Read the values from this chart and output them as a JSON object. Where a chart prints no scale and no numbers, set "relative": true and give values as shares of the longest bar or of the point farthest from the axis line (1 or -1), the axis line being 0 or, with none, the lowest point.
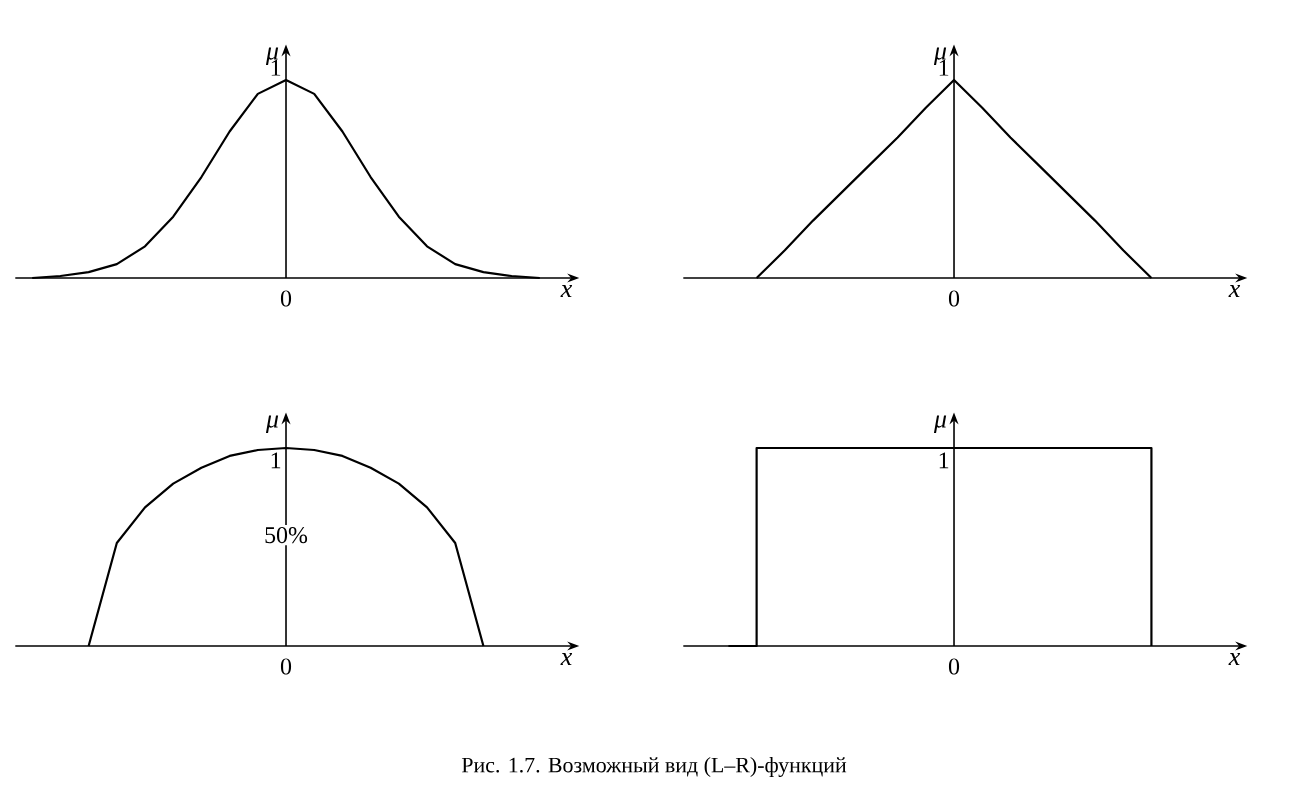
{
  "chart_data": [
    {
      "type": "line",
      "relative": true,
      "xlabel": "x",
      "ylabel": "μ",
      "categories": [
        null,
        null,
        null,
        null,
        null,
        null,
        null,
        null,
        null,
        null,
        null,
        null,
        null,
        null,
        null,
        null,
        null,
        null,
        null
      ],
      "series": [
        {
          "color": "#000000",
          "values": [
            0,
            0.01,
            0.03,
            0.07,
            0.16,
            0.31,
            0.51,
            0.74,
            0.93,
            1,
            0.93,
            0.74,
            0.51,
            0.31,
            0.16,
            0.07,
            0.03,
            0.01,
            0
          ]
        }
      ],
      "annotations": [
        "0",
        {
          "text": "1",
          "y": 1
        }
      ]
    },
    {
      "type": "line",
      "relative": true,
      "xlabel": "x",
      "ylabel": "μ",
      "categories": [
        null,
        null,
        null,
        null,
        null,
        null,
        null,
        null,
        null,
        null,
        null,
        null,
        null,
        null,
        null,
        null,
        null,
        null,
        null
      ],
      "series": [
        {
          "color": "#000000",
          "values": [
            null,
            null,
            0,
            0.14,
            0.29,
            0.43,
            0.57,
            0.71,
            0.86,
            1,
            0.86,
            0.71,
            0.57,
            0.43,
            0.29,
            0.14,
            0,
            null,
            null
          ]
        }
      ],
      "annotations": [
        "0",
        {
          "text": "1",
          "y": 1
        }
      ]
    },
    {
      "type": "line",
      "relative": true,
      "xlabel": "x",
      "ylabel": "μ",
      "categories": [
        null,
        null,
        null,
        null,
        null,
        null,
        null,
        null,
        null,
        null,
        null,
        null,
        null,
        null,
        null,
        null,
        null,
        null,
        null
      ],
      "series": [
        {
          "color": "#000000",
          "values": [
            null,
            null,
            0,
            0.52,
            0.7,
            0.82,
            0.9,
            0.96,
            0.99,
            1,
            0.99,
            0.96,
            0.9,
            0.82,
            0.7,
            0.52,
            0,
            null,
            null
          ]
        }
      ],
      "annotations": [
        "0",
        {
          "text": "1",
          "y": 1
        },
        "50%"
      ]
    },
    {
      "type": "step",
      "relative": true,
      "xlabel": "x",
      "ylabel": "μ",
      "categories": [
        null,
        null,
        null,
        null,
        null,
        null,
        null,
        null,
        null,
        null,
        null,
        null,
        null,
        null,
        null,
        null,
        null,
        null,
        null
      ],
      "series": [
        {
          "color": "#000000",
          "values": [
            null,
            0,
            1,
            1,
            1,
            1,
            1,
            1,
            1,
            1,
            1,
            1,
            1,
            1,
            1,
            1,
            0,
            null,
            null
          ]
        }
      ],
      "annotations": [
        "0",
        {
          "text": "1",
          "y": 1
        }
      ]
    },
    {
      "type": "other",
      "annotations": [
        "Рис. 1.7. Возможный вид (L–R)-функций"
      ]
    }
  ]
}
